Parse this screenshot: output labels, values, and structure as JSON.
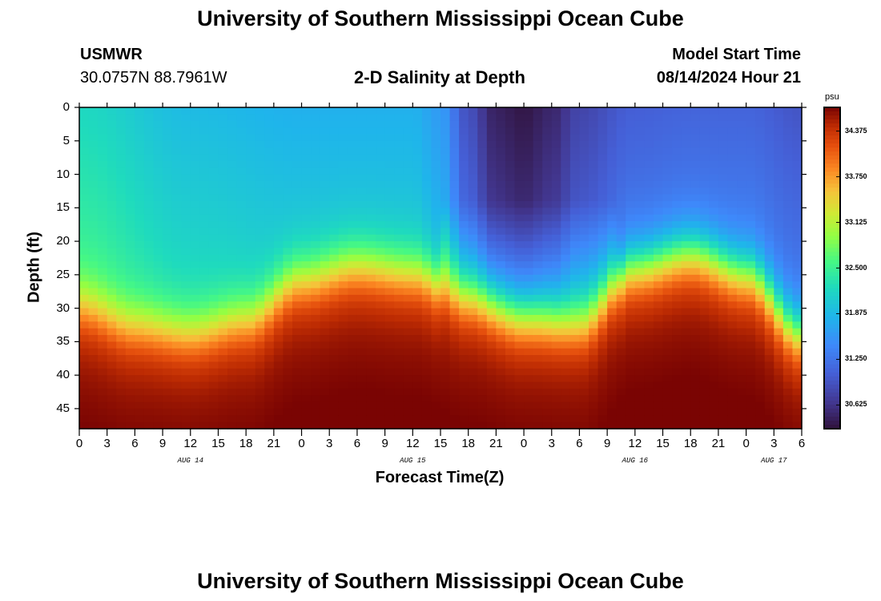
{
  "page": {
    "title_top": "University of Southern Mississippi Ocean Cube",
    "title_bottom": "University of Southern Mississippi Ocean Cube",
    "station_name": "USMWR",
    "station_coords": "30.0757N  88.7961W",
    "plot_title": "2-D Salinity at Depth",
    "model_start_label": "Model Start Time",
    "model_start_value": "08/14/2024 Hour 21"
  },
  "chart_data": {
    "type": "heatmap",
    "title": "2-D Salinity at Depth",
    "xlabel": "Forecast Time(Z)",
    "ylabel": "Depth (ft)",
    "x_hours_range": [
      0,
      78
    ],
    "x_tick_labels": [
      "0",
      "3",
      "6",
      "9",
      "12",
      "15",
      "18",
      "21",
      "0",
      "3",
      "6",
      "9",
      "12",
      "15",
      "18",
      "21",
      "0",
      "3",
      "6",
      "9",
      "12",
      "15",
      "18",
      "21",
      "0",
      "3",
      "6"
    ],
    "day_labels": [
      {
        "label": "AUG 14",
        "hour": 12
      },
      {
        "label": "AUG 15",
        "hour": 36
      },
      {
        "label": "AUG 16",
        "hour": 60
      },
      {
        "label": "AUG 17",
        "hour": 75
      }
    ],
    "y_tick_labels": [
      "0",
      "5",
      "10",
      "15",
      "20",
      "25",
      "30",
      "35",
      "40",
      "45"
    ],
    "y_range_ft": [
      0,
      48
    ],
    "colorbar": {
      "unit": "psu",
      "range": [
        30.3,
        34.7
      ],
      "tick_labels": [
        "34.375",
        "33.750",
        "33.125",
        "32.500",
        "31.875",
        "31.250",
        "30.625"
      ],
      "tick_values": [
        34.375,
        33.75,
        33.125,
        32.5,
        31.875,
        31.25,
        30.625
      ]
    },
    "surface_salinity_psu": {
      "hours": [
        0,
        12,
        24,
        36,
        39,
        42,
        45,
        48,
        51,
        54,
        60,
        66,
        72,
        78
      ],
      "values": [
        32.2,
        31.9,
        31.8,
        31.8,
        31.6,
        30.9,
        30.45,
        30.35,
        30.5,
        30.8,
        31.05,
        31.1,
        31.1,
        30.95
      ]
    },
    "halocline_depth_ft": {
      "hours": [
        0,
        6,
        12,
        18,
        24,
        30,
        36,
        42,
        48,
        54,
        60,
        66,
        72,
        78
      ],
      "values": [
        30,
        33,
        34,
        32,
        26,
        24,
        25,
        29,
        32,
        33,
        24,
        22,
        25,
        34
      ]
    },
    "bottom_salinity_psu": 34.6,
    "gridlines": false
  }
}
